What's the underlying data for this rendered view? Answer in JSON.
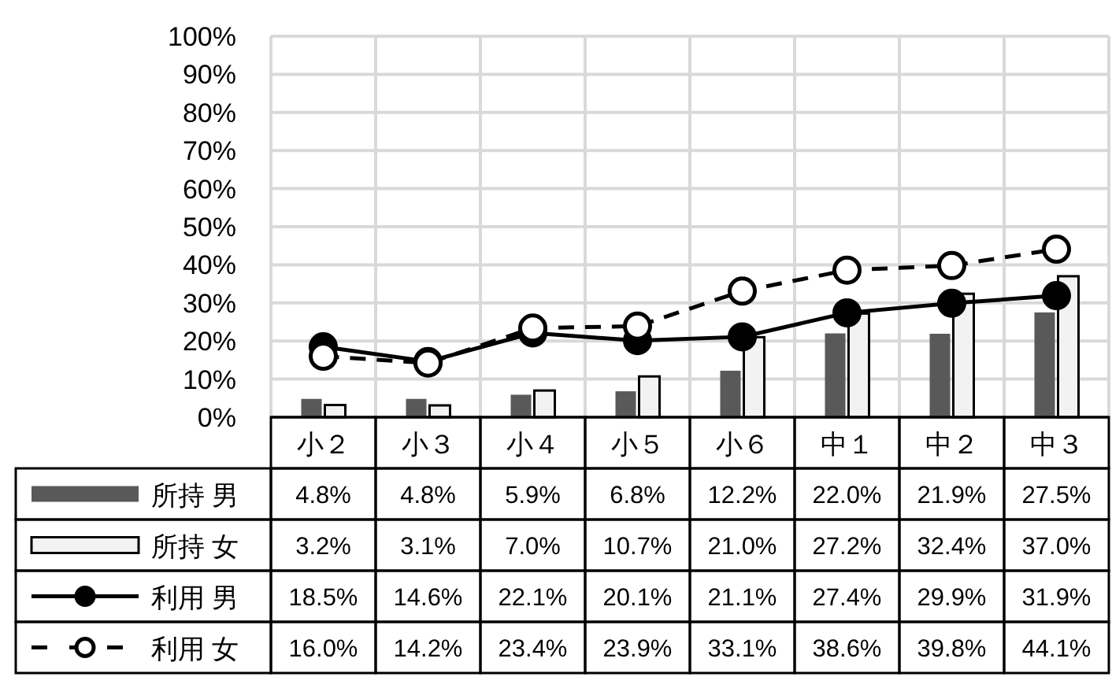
{
  "chart_data": {
    "type": "bar",
    "categories": [
      "小２",
      "小３",
      "小４",
      "小５",
      "小６",
      "中１",
      "中２",
      "中３"
    ],
    "series": [
      {
        "name": "所持 男",
        "color": "#595959",
        "values": [
          4.8,
          4.8,
          5.9,
          6.8,
          12.2,
          22.0,
          21.9,
          27.5
        ],
        "value_labels": [
          "4.8%",
          "4.8%",
          "5.9%",
          "6.8%",
          "12.2%",
          "22.0%",
          "21.9%",
          "27.5%"
        ]
      },
      {
        "name": "所持 女",
        "color": "#f2f2f2",
        "values": [
          3.2,
          3.1,
          7.0,
          10.7,
          21.0,
          27.2,
          32.4,
          37.0
        ],
        "value_labels": [
          "3.2%",
          "3.1%",
          "7.0%",
          "10.7%",
          "21.0%",
          "27.2%",
          "32.4%",
          "37.0%"
        ]
      },
      {
        "name": "利用 男",
        "type": "line",
        "color": "#000000",
        "marker": "circle",
        "line_style": "solid",
        "values": [
          18.5,
          14.6,
          22.1,
          20.1,
          21.1,
          27.4,
          29.9,
          31.9
        ],
        "value_labels": [
          "18.5%",
          "14.6%",
          "22.1%",
          "20.1%",
          "21.1%",
          "27.4%",
          "29.9%",
          "31.9%"
        ]
      },
      {
        "name": "利用 女",
        "type": "line",
        "color": "#000000",
        "marker": "circle",
        "line_style": "dashed",
        "values": [
          16.0,
          14.2,
          23.4,
          23.9,
          33.1,
          38.6,
          39.8,
          44.1
        ],
        "value_labels": [
          "16.0%",
          "14.2%",
          "23.4%",
          "23.9%",
          "33.1%",
          "38.6%",
          "39.8%",
          "44.1%"
        ]
      }
    ],
    "ylim": [
      0,
      100
    ],
    "yticks": [
      {
        "value": 0,
        "label": "0%"
      },
      {
        "value": 10,
        "label": "10%"
      },
      {
        "value": 20,
        "label": "20%"
      },
      {
        "value": 30,
        "label": "30%"
      },
      {
        "value": 40,
        "label": "40%"
      },
      {
        "value": 50,
        "label": "50%"
      },
      {
        "value": 60,
        "label": "60%"
      },
      {
        "value": 70,
        "label": "70%"
      },
      {
        "value": 80,
        "label": "80%"
      },
      {
        "value": 90,
        "label": "90%"
      },
      {
        "value": 100,
        "label": "100%"
      }
    ],
    "grid": true,
    "legend": "bottom left"
  }
}
